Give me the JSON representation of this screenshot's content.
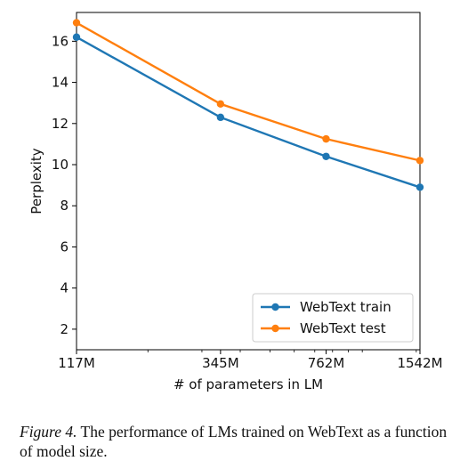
{
  "chart_data": {
    "type": "line",
    "title": "",
    "xlabel": "# of parameters in LM",
    "ylabel": "Perplexity",
    "x_scale": "log",
    "categories": [
      "117M",
      "345M",
      "762M",
      "1542M"
    ],
    "x": [
      117,
      345,
      762,
      1542
    ],
    "ylim": [
      1,
      17.4
    ],
    "yticks": [
      2,
      4,
      6,
      8,
      10,
      12,
      14,
      16
    ],
    "series": [
      {
        "name": "WebText train",
        "color": "#1f77b4",
        "values": [
          16.2,
          12.3,
          10.4,
          8.9
        ]
      },
      {
        "name": "WebText test",
        "color": "#ff7f0e",
        "values": [
          16.9,
          12.95,
          11.25,
          10.2
        ]
      }
    ],
    "legend": "lower right",
    "grid": false
  },
  "caption": {
    "label": "Figure 4.",
    "text": " The performance of LMs trained on WebText as a function of model size."
  }
}
